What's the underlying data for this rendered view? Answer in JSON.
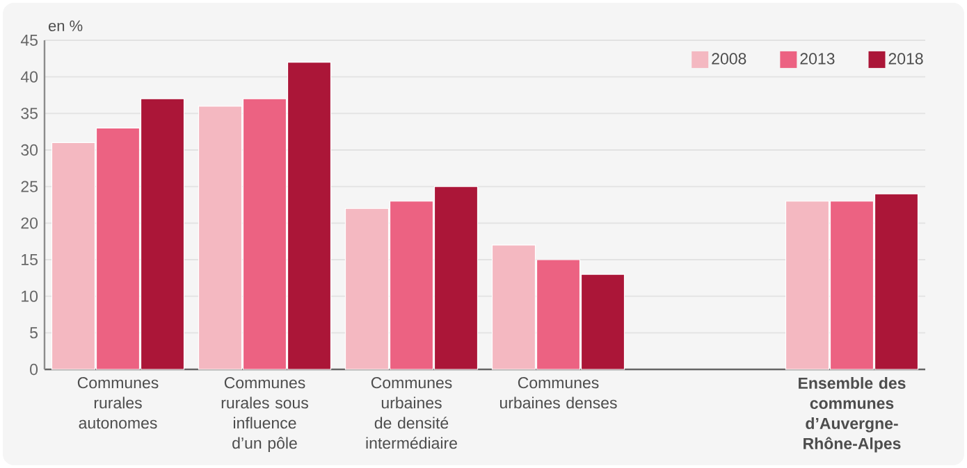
{
  "chart_data": {
    "type": "bar",
    "ylabel": "en %",
    "categories": [
      "Communes rurales autonomes",
      "Communes rurales sous influence d’un pôle",
      "Communes urbaines de densité intermédiaire",
      "Communes urbaines denses",
      null,
      "**Ensemble des communes d’Auvergne-Rhône-Alpes**"
    ],
    "series": [
      {
        "name": "2008",
        "color": "#f4b8c1",
        "values": [
          31,
          36,
          22,
          17,
          null,
          23
        ]
      },
      {
        "name": "2013",
        "color": "#ec6282",
        "values": [
          33,
          37,
          23,
          15,
          null,
          23
        ]
      },
      {
        "name": "2018",
        "color": "#ab1638",
        "values": [
          37,
          42,
          25,
          13,
          null,
          24
        ]
      }
    ],
    "ylim": [
      0,
      45
    ],
    "yticks": [
      0,
      5,
      10,
      15,
      20,
      25,
      30,
      35,
      40,
      45
    ],
    "grid": "y",
    "legend": "top right"
  }
}
